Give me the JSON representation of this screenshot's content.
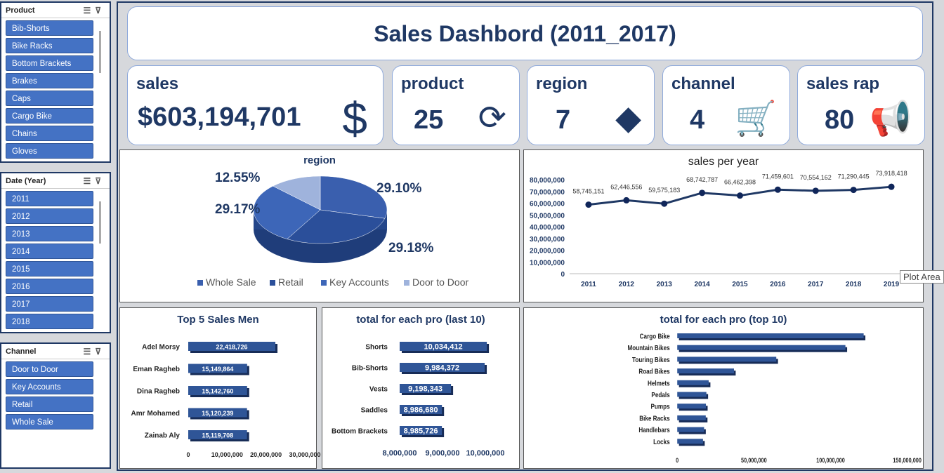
{
  "slicers": [
    {
      "title": "Product",
      "items": [
        "Bib-Shorts",
        "Bike Racks",
        "Bottom Brackets",
        "Brakes",
        "Caps",
        "Cargo Bike",
        "Chains",
        "Gloves"
      ]
    },
    {
      "title": "Date (Year)",
      "items": [
        "2011",
        "2012",
        "2013",
        "2014",
        "2015",
        "2016",
        "2017",
        "2018"
      ]
    },
    {
      "title": "Channel",
      "items": [
        "Door to Door",
        "Key Accounts",
        "Retail",
        "Whole Sale"
      ]
    }
  ],
  "title": "Sales Dashbord (2011_2017)",
  "kpis": [
    {
      "label": "sales",
      "value": "$603,194,701",
      "icon": "dollar-icon"
    },
    {
      "label": "product",
      "value": "25",
      "icon": "package-cycle-icon"
    },
    {
      "label": "region",
      "value": "7",
      "icon": "africa-map-icon"
    },
    {
      "label": "channel",
      "value": "4",
      "icon": "shopping-cart-icon"
    },
    {
      "label": "sales rap",
      "value": "80",
      "icon": "megaphone-person-icon"
    }
  ],
  "tooltip": "Plot Area",
  "colors": {
    "accent": "#1f3864",
    "bar": "#2f5597",
    "pie": [
      "#3a5fae",
      "#2b4f9a",
      "#3d66b8",
      "#9fb3dc"
    ]
  },
  "chart_data": [
    {
      "type": "pie",
      "title": "region",
      "categories": [
        "Whole Sale",
        "Retail",
        "Key Accounts",
        "Door to Door"
      ],
      "values": [
        29.1,
        29.18,
        29.17,
        12.55
      ],
      "labels": [
        "29.10%",
        "29.18%",
        "29.17%",
        "12.55%"
      ],
      "legend": "bottom"
    },
    {
      "type": "line",
      "title": "sales per year",
      "x": [
        "2011",
        "2012",
        "2013",
        "2014",
        "2015",
        "2016",
        "2017",
        "2018",
        "2019"
      ],
      "values": [
        58745151,
        62446556,
        59575183,
        68742787,
        66462398,
        71459601,
        70554162,
        71290445,
        73918418
      ],
      "labels": [
        "58,745,151",
        "62,446,556",
        "59,575,183",
        "68,742,787",
        "66,462,398",
        "71,459,601",
        "70,554,162",
        "71,290,445",
        "73,918,418"
      ],
      "ylim": [
        0,
        80000000
      ],
      "yticks": [
        "0",
        "10,000,000",
        "20,000,000",
        "30,000,000",
        "40,000,000",
        "50,000,000",
        "60,000,000",
        "70,000,000",
        "80,000,000"
      ]
    },
    {
      "type": "bar",
      "title": "Top 5 Sales Men",
      "categories": [
        "Adel Morsy",
        "Eman Ragheb",
        "Dina Ragheb",
        "Amr Mohamed",
        "Zainab Aly"
      ],
      "values": [
        22418726,
        15149864,
        15142760,
        15120239,
        15119708
      ],
      "labels": [
        "22,418,726",
        "15,149,864",
        "15,142,760",
        "15,120,239",
        "15,119,708"
      ],
      "xlim": [
        0,
        30000000
      ],
      "xticks": [
        "0",
        "10,000,000",
        "20,000,000",
        "30,000,000"
      ]
    },
    {
      "type": "bar",
      "title": "total for each pro (last 10)",
      "categories": [
        "Shorts",
        "Bib-Shorts",
        "Vests",
        "Saddles",
        "Bottom Brackets"
      ],
      "values": [
        10034412,
        9984372,
        9198343,
        8986680,
        8985726
      ],
      "labels": [
        "10,034,412",
        "9,984,372",
        "9,198,343",
        "8,986,680",
        "8,985,726"
      ],
      "xlim": [
        8000000,
        10000000
      ],
      "xticks": [
        "8,000,000",
        "9,000,000",
        "10,000,000"
      ]
    },
    {
      "type": "bar",
      "title": "total for each pro (top 10)",
      "categories": [
        "Cargo Bike",
        "Mountain Bikes",
        "Touring Bikes",
        "Road Bikes",
        "Helmets",
        "Pedals",
        "Pumps",
        "Bike Racks",
        "Handlebars",
        "Locks"
      ],
      "values": [
        121600000,
        109700000,
        64600000,
        37000000,
        20500000,
        19000000,
        18700000,
        18600000,
        17500000,
        16800000
      ],
      "xlim": [
        0,
        150000000
      ],
      "xticks": [
        "0",
        "50,000,000",
        "100,000,000",
        "150,000,000"
      ]
    }
  ]
}
